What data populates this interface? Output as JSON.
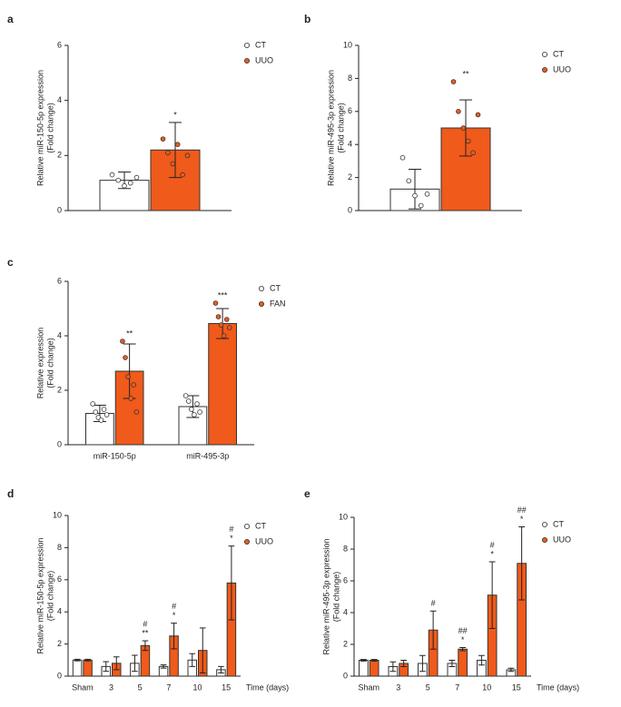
{
  "chart_data": [
    {
      "type": "bar",
      "panel": "a",
      "ylabel": [
        "Relative miR-150-5p expression",
        "(Fold change)"
      ],
      "categories": [
        null
      ],
      "ylim": [
        0,
        6
      ],
      "yticks": [
        0,
        2,
        4,
        6
      ],
      "series": [
        {
          "name": "CT",
          "color": "#ffffff",
          "values": [
            1.1
          ],
          "errors": [
            0.3
          ],
          "points": [
            [
              1.3,
              1.1,
              0.9,
              1.0,
              1.2
            ]
          ]
        },
        {
          "name": "UUO",
          "color": "#f05a1a",
          "values": [
            2.2
          ],
          "errors": [
            1.0
          ],
          "points": [
            [
              2.6,
              2.1,
              1.7,
              2.4,
              1.3,
              2.0
            ]
          ]
        }
      ],
      "annotations": [
        [
          "*"
        ]
      ]
    },
    {
      "type": "bar",
      "panel": "b",
      "ylabel": [
        "Relative miR-495-3p expression",
        "(Fold change)"
      ],
      "categories": [
        null
      ],
      "ylim": [
        0,
        10
      ],
      "yticks": [
        0,
        2,
        4,
        6,
        8,
        10
      ],
      "series": [
        {
          "name": "CT",
          "color": "#ffffff",
          "values": [
            1.3
          ],
          "errors": [
            1.2
          ],
          "points": [
            [
              3.2,
              1.8,
              0.9,
              0.3,
              1.0
            ]
          ]
        },
        {
          "name": "UUO",
          "color": "#f05a1a",
          "values": [
            5.0
          ],
          "errors": [
            1.7
          ],
          "points": [
            [
              7.8,
              6.0,
              5.0,
              4.2,
              3.5,
              5.8
            ]
          ]
        }
      ],
      "annotations": [
        [
          "**"
        ]
      ]
    },
    {
      "type": "bar",
      "panel": "c",
      "ylabel": [
        "Relative expression",
        "(Fold change)"
      ],
      "categories": [
        "miR-150-5p",
        "miR-495-3p"
      ],
      "ylim": [
        0,
        6
      ],
      "yticks": [
        0,
        2,
        4,
        6
      ],
      "series": [
        {
          "name": "CT",
          "color": "#ffffff",
          "values": [
            1.15,
            1.4
          ],
          "errors": [
            0.3,
            0.4
          ],
          "points": [
            [
              1.5,
              1.2,
              1.0,
              0.9,
              1.3,
              1.1
            ],
            [
              1.8,
              1.6,
              1.3,
              1.1,
              1.5,
              1.2
            ]
          ]
        },
        {
          "name": "FAN",
          "color": "#f05a1a",
          "values": [
            2.7,
            4.45
          ],
          "errors": [
            1.0,
            0.55
          ],
          "points": [
            [
              3.8,
              3.2,
              2.5,
              1.7,
              2.2,
              1.2
            ],
            [
              5.2,
              4.7,
              4.4,
              4.0,
              4.6,
              4.3
            ]
          ]
        }
      ],
      "annotations": [
        [
          "**"
        ],
        [
          "***"
        ]
      ]
    },
    {
      "type": "bar",
      "panel": "d",
      "ylabel": [
        "Relative miR-150-5p expression",
        "(Fold change)"
      ],
      "xlabel": "Time (days)",
      "categories": [
        "Sham",
        "3",
        "5",
        "7",
        "10",
        "15"
      ],
      "ylim": [
        0,
        10
      ],
      "yticks": [
        0,
        2,
        4,
        6,
        8,
        10
      ],
      "series": [
        {
          "name": "CT",
          "color": "#ffffff",
          "values": [
            1.0,
            0.6,
            0.8,
            0.6,
            1.0,
            0.4
          ],
          "errors": [
            0.05,
            0.3,
            0.5,
            0.1,
            0.4,
            0.2
          ]
        },
        {
          "name": "UUO",
          "color": "#f05a1a",
          "values": [
            1.0,
            0.8,
            1.9,
            2.5,
            1.6,
            5.8
          ],
          "errors": [
            0.05,
            0.4,
            0.3,
            0.8,
            1.4,
            2.3
          ]
        }
      ],
      "annotations": [
        null,
        null,
        [
          "#",
          "**"
        ],
        [
          "#",
          "*"
        ],
        null,
        [
          "#",
          "*"
        ]
      ]
    },
    {
      "type": "bar",
      "panel": "e",
      "ylabel": [
        "Relative miR-495-3p expression",
        "(Fold change)"
      ],
      "xlabel": "Time (days)",
      "categories": [
        "Sham",
        "3",
        "5",
        "7",
        "10",
        "15"
      ],
      "ylim": [
        0,
        10
      ],
      "yticks": [
        0,
        2,
        4,
        6,
        8,
        10
      ],
      "series": [
        {
          "name": "CT",
          "color": "#ffffff",
          "values": [
            1.0,
            0.6,
            0.8,
            0.8,
            1.0,
            0.4
          ],
          "errors": [
            0.05,
            0.3,
            0.5,
            0.2,
            0.3,
            0.1
          ]
        },
        {
          "name": "UUO",
          "color": "#f05a1a",
          "values": [
            1.0,
            0.8,
            2.9,
            1.7,
            5.1,
            7.1
          ],
          "errors": [
            0.05,
            0.2,
            1.2,
            0.1,
            2.1,
            2.3
          ]
        }
      ],
      "annotations": [
        null,
        null,
        [
          "#"
        ],
        [
          "##",
          "*"
        ],
        [
          "#",
          "*"
        ],
        [
          "##",
          "*"
        ]
      ]
    }
  ]
}
